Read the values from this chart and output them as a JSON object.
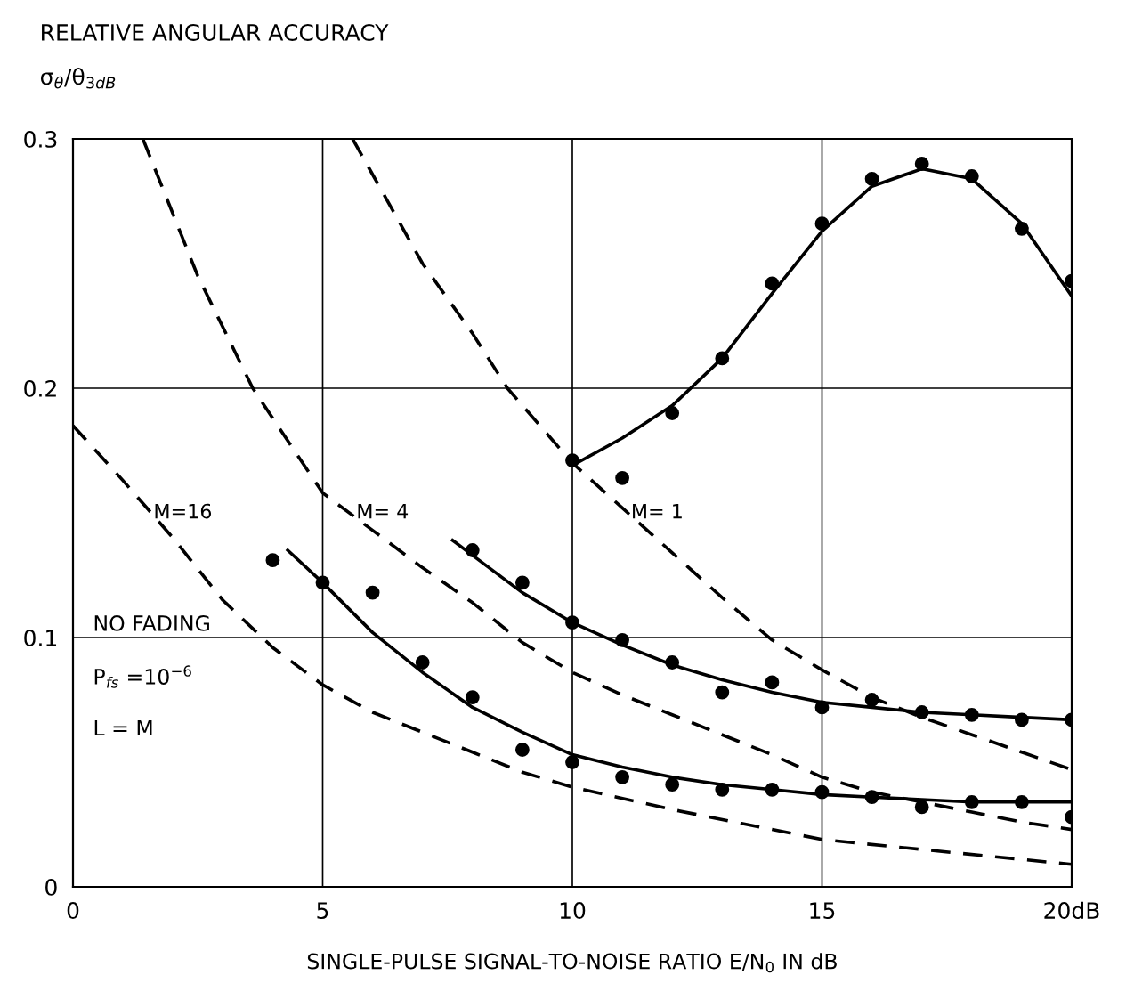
{
  "chart_data": {
    "type": "line",
    "title": "RELATIVE ANGULAR ACCURACY",
    "ylabel": "σ$_{θ}$/θ$_{3dB}$",
    "xlabel": "SINGLE-PULSE SIGNAL-TO-NOISE RATIO E/N$_{0}$ IN dB",
    "xlim": [
      0,
      20
    ],
    "xticks": [
      0,
      5,
      10,
      {
        "value": 20,
        "label": "20dB"
      },
      15
    ],
    "ylim": [
      0,
      0.3
    ],
    "yticks": [
      0,
      0.1,
      0.2,
      0.3
    ],
    "grid": true,
    "series": [
      {
        "type": "scatter",
        "color": "#000000",
        "marker": "circle",
        "x": [
          10,
          11,
          12,
          13,
          14,
          15,
          16,
          17,
          18,
          19,
          20
        ],
        "values": [
          0.171,
          0.164,
          0.19,
          0.212,
          0.242,
          0.266,
          0.284,
          0.29,
          0.285,
          0.264,
          0.243
        ]
      },
      {
        "color": "#000000",
        "line_style": "solid",
        "x": [
          10,
          11,
          12,
          13,
          14,
          15,
          16,
          17,
          18,
          19,
          20
        ],
        "values": [
          0.169,
          0.18,
          0.193,
          0.212,
          0.238,
          0.263,
          0.281,
          0.288,
          0.284,
          0.266,
          0.237
        ]
      },
      {
        "type": "scatter",
        "color": "#000000",
        "marker": "circle",
        "x": [
          8,
          9,
          10,
          11,
          12,
          13,
          14,
          15,
          16,
          17,
          18,
          19,
          20
        ],
        "values": [
          0.135,
          0.122,
          0.106,
          0.099,
          0.09,
          0.078,
          0.082,
          0.072,
          0.075,
          0.07,
          0.069,
          0.067,
          0.067
        ]
      },
      {
        "color": "#000000",
        "line_style": "solid",
        "x": [
          7.6,
          8,
          9,
          10,
          11,
          12,
          13,
          14,
          15,
          16,
          17,
          18,
          19,
          20
        ],
        "values": [
          0.139,
          0.133,
          0.118,
          0.106,
          0.097,
          0.089,
          0.083,
          0.078,
          0.074,
          0.072,
          0.07,
          0.069,
          0.068,
          0.067
        ]
      },
      {
        "type": "scatter",
        "color": "#000000",
        "marker": "circle",
        "x": [
          4,
          5,
          6,
          7,
          8,
          9,
          10,
          11,
          12,
          13,
          14,
          15,
          16,
          17,
          18,
          19,
          20
        ],
        "values": [
          0.131,
          0.122,
          0.118,
          0.09,
          0.076,
          0.055,
          0.05,
          0.044,
          0.041,
          0.039,
          0.039,
          0.038,
          0.036,
          0.032,
          0.034,
          0.034,
          0.028
        ]
      },
      {
        "color": "#000000",
        "line_style": "solid",
        "x": [
          4.3,
          5,
          6,
          7,
          8,
          9,
          10,
          11,
          12,
          13,
          14,
          15,
          16,
          17,
          18,
          20
        ],
        "values": [
          0.135,
          0.122,
          0.102,
          0.086,
          0.072,
          0.062,
          0.053,
          0.048,
          0.044,
          0.041,
          0.039,
          0.037,
          0.036,
          0.035,
          0.034,
          0.034
        ]
      },
      {
        "color": "#000000",
        "line_style": "dashed",
        "x": [
          5.6,
          7,
          8,
          8.7,
          10,
          11,
          12,
          13,
          14,
          15,
          16,
          17,
          18,
          19,
          20
        ],
        "values": [
          0.3,
          0.25,
          0.222,
          0.2,
          0.17,
          0.152,
          0.134,
          0.116,
          0.099,
          0.087,
          0.076,
          0.068,
          0.061,
          0.054,
          0.047
        ]
      },
      {
        "color": "#000000",
        "line_style": "dashed",
        "x": [
          1.4,
          2.5,
          3.6,
          5,
          6,
          7,
          8,
          9,
          10,
          11,
          12,
          13,
          14,
          15,
          16,
          17,
          18,
          19,
          20
        ],
        "values": [
          0.3,
          0.245,
          0.2,
          0.158,
          0.143,
          0.128,
          0.114,
          0.098,
          0.086,
          0.077,
          0.069,
          0.061,
          0.053,
          0.044,
          0.038,
          0.034,
          0.03,
          0.026,
          0.023
        ]
      },
      {
        "color": "#000000",
        "line_style": "dashed",
        "x": [
          0,
          1,
          2,
          3,
          4,
          5,
          6,
          7,
          8,
          9,
          10,
          12,
          15,
          17,
          20
        ],
        "values": [
          0.185,
          0.163,
          0.14,
          0.115,
          0.096,
          0.081,
          0.07,
          0.062,
          0.054,
          0.046,
          0.04,
          0.031,
          0.019,
          0.015,
          0.009
        ]
      }
    ],
    "annotations": [
      "M=16",
      "M= 4",
      "M= 1",
      "NO FADING",
      "P$_{fs}$ =10$^{−6}$",
      "L = M"
    ]
  }
}
